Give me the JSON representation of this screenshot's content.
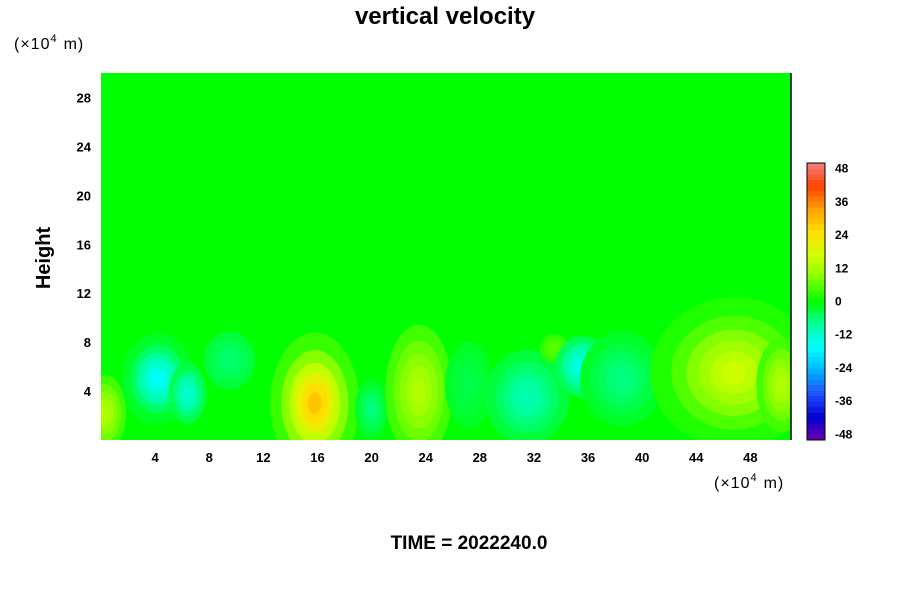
{
  "chart_data": {
    "type": "heatmap",
    "title": "vertical velocity",
    "ylabel": "Height",
    "xlabel": "",
    "y_unit": "(×10",
    "x_unit": "(×10",
    "unit_exp": "4",
    "unit_tail": "m)",
    "footer": "TIME = 2022240.0",
    "xlim": [
      0,
      51
    ],
    "ylim": [
      0,
      30
    ],
    "x_ticks": [
      4,
      8,
      12,
      16,
      20,
      24,
      28,
      32,
      36,
      40,
      44,
      48
    ],
    "x_tick_labels": [
      "4",
      "8",
      "12",
      "16",
      "20",
      "24",
      "28",
      "32",
      "36",
      "40",
      "44",
      "48"
    ],
    "y_ticks": [
      4,
      8,
      12,
      16,
      20,
      24,
      28
    ],
    "y_tick_labels": [
      "4",
      "8",
      "12",
      "16",
      "20",
      "24",
      "28"
    ],
    "colorbar": {
      "min": -50,
      "max": 50,
      "step": 2,
      "ticks": [
        48,
        36,
        24,
        12,
        0,
        -12,
        -24,
        -36,
        -48
      ],
      "tick_labels": [
        "48",
        "36",
        "24",
        "12",
        "0",
        "-12",
        "-24",
        "-36",
        "-48"
      ]
    },
    "features": [
      {
        "x": 0.3,
        "y": 2.2,
        "value": 14,
        "sx": 1.0,
        "sy": 2.0
      },
      {
        "x": 4.2,
        "y": 5.0,
        "value": -17,
        "sx": 1.3,
        "sy": 1.8
      },
      {
        "x": 6.4,
        "y": 3.8,
        "value": -13,
        "sx": 0.9,
        "sy": 1.6
      },
      {
        "x": 9.5,
        "y": 6.5,
        "value": -6,
        "sx": 1.6,
        "sy": 2.0
      },
      {
        "x": 15.8,
        "y": 3.0,
        "value": 30,
        "sx": 1.6,
        "sy": 2.8
      },
      {
        "x": 20.0,
        "y": 2.5,
        "value": -7,
        "sx": 0.8,
        "sy": 1.6
      },
      {
        "x": 23.5,
        "y": 4.0,
        "value": 14,
        "sx": 1.6,
        "sy": 3.5
      },
      {
        "x": 27.2,
        "y": 4.5,
        "value": -4,
        "sx": 1.5,
        "sy": 3.0
      },
      {
        "x": 31.5,
        "y": 3.5,
        "value": -10,
        "sx": 2.0,
        "sy": 2.5
      },
      {
        "x": 33.5,
        "y": 7.5,
        "value": 6,
        "sx": 0.9,
        "sy": 1.0
      },
      {
        "x": 35.6,
        "y": 6.0,
        "value": -16,
        "sx": 1.3,
        "sy": 1.6
      },
      {
        "x": 38.5,
        "y": 5.0,
        "value": -7,
        "sx": 2.0,
        "sy": 2.5
      },
      {
        "x": 42.0,
        "y": 6.0,
        "value": -3,
        "sx": 1.5,
        "sy": 3.0
      },
      {
        "x": 46.8,
        "y": 5.5,
        "value": 17,
        "sx": 3.0,
        "sy": 3.0
      },
      {
        "x": 50.3,
        "y": 4.5,
        "value": 14,
        "sx": 1.2,
        "sy": 2.5
      }
    ],
    "colors": {
      "neutral": "#00ff00",
      "negative_1": "#00ffa0",
      "negative_2": "#00ffff",
      "negative_3": "#00b0ff",
      "negative_4": "#2050ff",
      "negative_5": "#0000d0",
      "negative_6": "#6a00b0",
      "positive_1": "#80ff00",
      "positive_2": "#d0ff00",
      "positive_3": "#ffe000",
      "positive_4": "#ffa000",
      "positive_5": "#ff4000",
      "positive_6": "#f08080"
    }
  }
}
